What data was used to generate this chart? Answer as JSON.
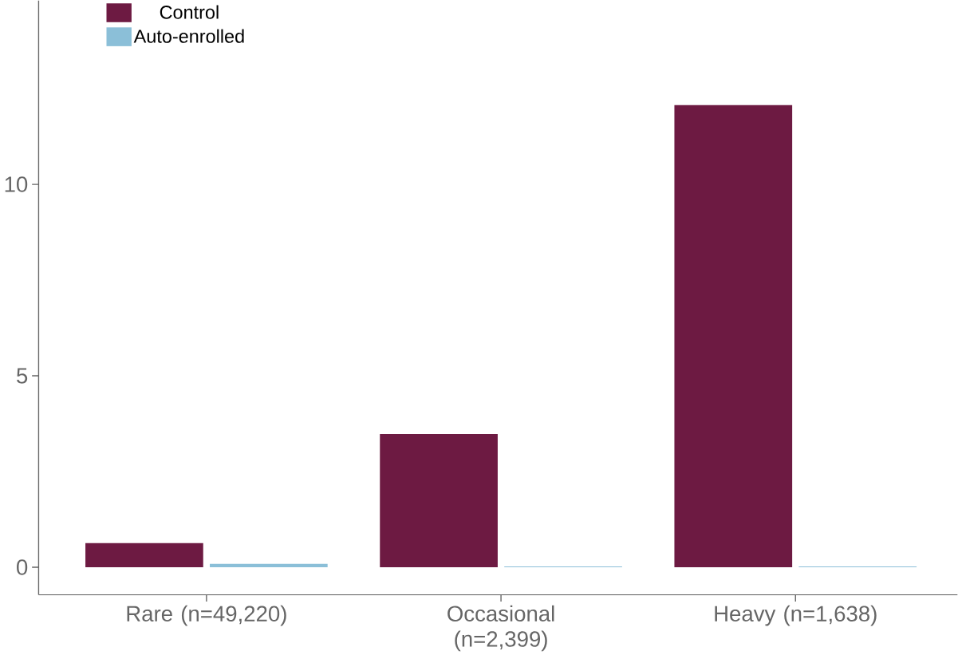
{
  "chart_data": {
    "type": "bar",
    "categories": [
      "Rare (n=49,220)",
      "Occasional (n=2,399)",
      "Heavy (n=1,638)"
    ],
    "series": [
      {
        "name": "Control",
        "color": "#6d1a42",
        "values": [
          0.63,
          3.48,
          12.07
        ]
      },
      {
        "name": "Auto-enrolled",
        "color": "#8bbfd8",
        "values": [
          0.09,
          0.02,
          0.02
        ]
      }
    ],
    "ylim": [
      -0.72,
      14.8
    ],
    "yticks": [
      0,
      5,
      10
    ],
    "grid": false,
    "legend": "top left"
  }
}
